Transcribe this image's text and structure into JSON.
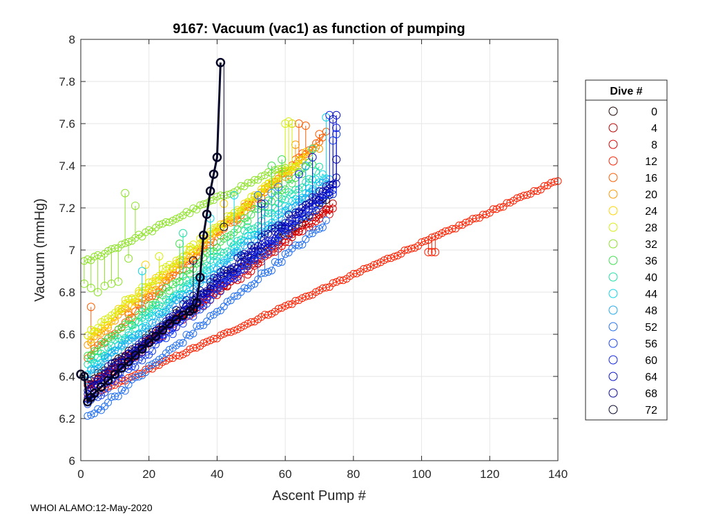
{
  "footer": "WHOI ALAMO:12-May-2020",
  "chart_data": {
    "type": "scatter",
    "title": "9167: Vacuum (vac1) as function of pumping",
    "xlabel": "Ascent Pump #",
    "ylabel": "Vacuum (mmHg)",
    "xlim": [
      0,
      140
    ],
    "ylim": [
      6,
      8
    ],
    "xticks": [
      0,
      20,
      40,
      60,
      80,
      100,
      120,
      140
    ],
    "yticks": [
      6,
      6.2,
      6.4,
      6.6,
      6.8,
      7,
      7.2,
      7.4,
      7.6,
      7.8,
      8
    ],
    "grid": true,
    "legend": {
      "title": "Dive #",
      "position": "outside-right",
      "entries": [
        {
          "label": "0",
          "color": "#1a0000"
        },
        {
          "label": "4",
          "color": "#b80000"
        },
        {
          "label": "8",
          "color": "#e00000"
        },
        {
          "label": "12",
          "color": "#ff2000"
        },
        {
          "label": "16",
          "color": "#ff5c00"
        },
        {
          "label": "20",
          "color": "#ff9900"
        },
        {
          "label": "24",
          "color": "#ffd400"
        },
        {
          "label": "28",
          "color": "#d8ee10"
        },
        {
          "label": "32",
          "color": "#8fe22c"
        },
        {
          "label": "36",
          "color": "#40e050"
        },
        {
          "label": "40",
          "color": "#20e0a8"
        },
        {
          "label": "44",
          "color": "#10d6e6"
        },
        {
          "label": "48",
          "color": "#20a8f0"
        },
        {
          "label": "52",
          "color": "#2470f0"
        },
        {
          "label": "56",
          "color": "#1a44f0"
        },
        {
          "label": "60",
          "color": "#1020e8"
        },
        {
          "label": "64",
          "color": "#0a10c8"
        },
        {
          "label": "68",
          "color": "#08089a"
        },
        {
          "label": "72",
          "color": "#050528"
        }
      ]
    },
    "series": [
      {
        "name": "0",
        "color": "#1a0000",
        "start": [
          2,
          6.36
        ],
        "end": [
          74,
          7.26
        ],
        "noise": 0.02
      },
      {
        "name": "4",
        "color": "#b80000",
        "start": [
          2,
          6.35
        ],
        "end": [
          74,
          7.22
        ],
        "noise": 0.02
      },
      {
        "name": "8",
        "color": "#e00000",
        "start": [
          2,
          6.34
        ],
        "end": [
          74,
          7.2
        ],
        "noise": 0.02
      },
      {
        "name": "12",
        "color": "#ff2000",
        "start": [
          2,
          6.3
        ],
        "end": [
          140,
          7.33
        ],
        "noise": 0.006,
        "spikes": [
          [
            102,
            6.99
          ],
          [
            103,
            6.99
          ],
          [
            104,
            6.99
          ]
        ]
      },
      {
        "name": "16",
        "color": "#ff5c00",
        "start": [
          2,
          6.5
        ],
        "end": [
          72,
          7.55
        ],
        "noise": 0.02,
        "spikes": [
          [
            3,
            6.73
          ],
          [
            62,
            7.6
          ],
          [
            64,
            7.6
          ],
          [
            66,
            7.59
          ],
          [
            70,
            7.55
          ]
        ]
      },
      {
        "name": "20",
        "color": "#ff9900",
        "start": [
          2,
          6.55
        ],
        "end": [
          70,
          7.5
        ],
        "noise": 0.02,
        "spikes": [
          [
            63,
            7.5
          ]
        ]
      },
      {
        "name": "24",
        "color": "#ffd400",
        "start": [
          2,
          6.58
        ],
        "end": [
          66,
          7.45
        ],
        "noise": 0.02,
        "spikes": [
          [
            19,
            6.93
          ],
          [
            42,
            7.22
          ]
        ]
      },
      {
        "name": "28",
        "color": "#d8ee10",
        "start": [
          2,
          6.6
        ],
        "end": [
          64,
          7.42
        ],
        "noise": 0.02,
        "spikes": [
          [
            60,
            7.6
          ],
          [
            61,
            7.61
          ],
          [
            62,
            7.6
          ],
          [
            23,
            6.97
          ]
        ]
      },
      {
        "name": "32",
        "color": "#8fe22c",
        "start": [
          1,
          6.94
        ],
        "end": [
          60,
          7.4
        ],
        "noise": 0.01,
        "spikes": [
          [
            1,
            6.84
          ],
          [
            3,
            6.82
          ],
          [
            5,
            6.8
          ],
          [
            7,
            6.83
          ],
          [
            9,
            6.84
          ],
          [
            11,
            6.85
          ],
          [
            13,
            7.27
          ],
          [
            16,
            7.21
          ],
          [
            14,
            6.96
          ]
        ]
      },
      {
        "name": "36",
        "color": "#40e050",
        "start": [
          2,
          6.48
        ],
        "end": [
          68,
          7.42
        ],
        "noise": 0.02,
        "spikes": [
          [
            56,
            7.4
          ],
          [
            59,
            7.43
          ],
          [
            29,
            7.03
          ]
        ]
      },
      {
        "name": "40",
        "color": "#20e0a8",
        "start": [
          2,
          6.45
        ],
        "end": [
          70,
          7.38
        ],
        "noise": 0.02,
        "spikes": [
          [
            68,
            7.48
          ],
          [
            30,
            7.08
          ]
        ]
      },
      {
        "name": "44",
        "color": "#10d6e6",
        "start": [
          2,
          6.42
        ],
        "end": [
          72,
          7.36
        ],
        "noise": 0.02,
        "spikes": [
          [
            45,
            7.26
          ],
          [
            72,
            7.63
          ],
          [
            18,
            6.9
          ],
          [
            38,
            7.15
          ]
        ]
      },
      {
        "name": "48",
        "color": "#20a8f0",
        "start": [
          2,
          6.4
        ],
        "end": [
          73,
          7.34
        ],
        "noise": 0.02,
        "spikes": [
          [
            56,
            7.27
          ],
          [
            66,
            7.4
          ]
        ]
      },
      {
        "name": "52",
        "color": "#2470f0",
        "start": [
          2,
          6.2
        ],
        "end": [
          72,
          7.13
        ],
        "noise": 0.015,
        "spikes": [
          [
            52,
            7.26
          ],
          [
            54,
            7.22
          ],
          [
            58,
            7.3
          ]
        ]
      },
      {
        "name": "56",
        "color": "#1a44f0",
        "start": [
          2,
          6.27
        ],
        "end": [
          74,
          7.27
        ],
        "noise": 0.02,
        "spikes": [
          [
            74,
            7.52
          ],
          [
            75,
            7.55
          ]
        ]
      },
      {
        "name": "60",
        "color": "#1020e8",
        "start": [
          2,
          6.3
        ],
        "end": [
          74,
          7.3
        ],
        "noise": 0.02,
        "spikes": [
          [
            64,
            7.36
          ],
          [
            75,
            7.58
          ],
          [
            73,
            7.64
          ]
        ]
      },
      {
        "name": "64",
        "color": "#0a10c8",
        "start": [
          2,
          6.33
        ],
        "end": [
          75,
          7.32
        ],
        "noise": 0.02,
        "spikes": [
          [
            68,
            7.44
          ],
          [
            75,
            7.64
          ],
          [
            74,
            7.62
          ]
        ]
      },
      {
        "name": "68",
        "color": "#08089a",
        "start": [
          2,
          6.35
        ],
        "end": [
          75,
          7.34
        ],
        "noise": 0.02,
        "spikes": [
          [
            75,
            7.43
          ],
          [
            53,
            7.22
          ]
        ]
      },
      {
        "name": "72",
        "color": "#050528",
        "bold": true,
        "points": [
          [
            0,
            6.41
          ],
          [
            1,
            6.4
          ],
          [
            2,
            6.28
          ],
          [
            3,
            6.3
          ],
          [
            4,
            6.32
          ],
          [
            6,
            6.35
          ],
          [
            8,
            6.38
          ],
          [
            10,
            6.41
          ],
          [
            12,
            6.44
          ],
          [
            14,
            6.47
          ],
          [
            16,
            6.5
          ],
          [
            18,
            6.53
          ],
          [
            20,
            6.56
          ],
          [
            22,
            6.59
          ],
          [
            24,
            6.62
          ],
          [
            26,
            6.65
          ],
          [
            28,
            6.67
          ],
          [
            30,
            6.69
          ],
          [
            32,
            6.71
          ],
          [
            33,
            6.72
          ],
          [
            34,
            6.75
          ],
          [
            35,
            6.87
          ],
          [
            36,
            7.07
          ],
          [
            37,
            7.17
          ],
          [
            38,
            7.28
          ],
          [
            39,
            7.36
          ],
          [
            40,
            7.44
          ],
          [
            41,
            7.89
          ]
        ],
        "spikes": [
          [
            33,
            6.95
          ],
          [
            42,
            7.11
          ]
        ]
      }
    ]
  }
}
